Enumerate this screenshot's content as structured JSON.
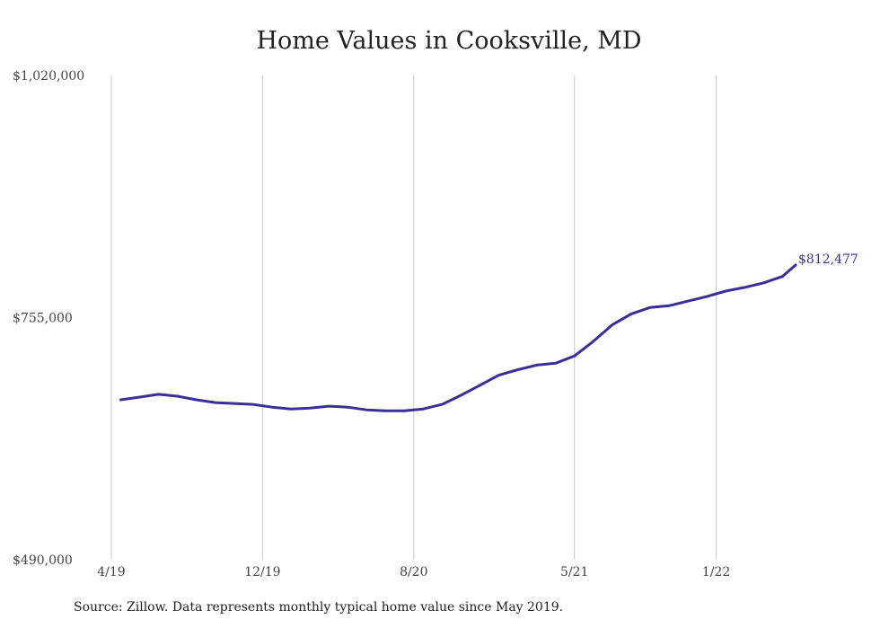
{
  "chart_data": {
    "type": "line",
    "title": "Home Values in Cooksville, MD",
    "xlabel": "",
    "ylabel": "",
    "x_tick_labels": [
      "4/19",
      "12/19",
      "8/20",
      "5/21",
      "1/22"
    ],
    "x_tick_positions": [
      0,
      8,
      16,
      24.5,
      32
    ],
    "y_tick_labels": [
      "$1,020,000",
      "$755,000",
      "$490,000"
    ],
    "ylim": [
      490000,
      1020000
    ],
    "xlim": [
      0,
      39
    ],
    "grid": "vertical",
    "series": [
      {
        "color": "#3a2f9a",
        "x": [
          0.5,
          1.5,
          2.5,
          3.5,
          4.5,
          5.5,
          6.5,
          7.5,
          8.5,
          9.5,
          10.5,
          11.5,
          12.5,
          13.5,
          14.5,
          15.5,
          16.5,
          17.5,
          18.5,
          19.5,
          20.5,
          21.5,
          22.5,
          23.5,
          24.5,
          25.5,
          26.5,
          27.5,
          28.5,
          29.5,
          30.5,
          31.5,
          32.5,
          33.5,
          34.5,
          35.5
        ],
        "values": [
          665000,
          668000,
          671000,
          669000,
          665000,
          662000,
          661000,
          660000,
          657000,
          655000,
          656000,
          658000,
          657000,
          654000,
          653000,
          653000,
          655000,
          660000,
          670000,
          681000,
          692000,
          698000,
          703000,
          705000,
          713000,
          729000,
          747000,
          759000,
          766000,
          768000,
          773000,
          778000,
          784000,
          788000,
          793000,
          800000
        ]
      }
    ],
    "end_label": "$812,477",
    "end_value": 812477
  },
  "source_note": "Source: Zillow. Data represents monthly typical home value since May 2019."
}
